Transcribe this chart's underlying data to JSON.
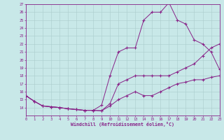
{
  "xlabel": "Windchill (Refroidissement éolien,°C)",
  "bg_color": "#c8e8e8",
  "line_color": "#882288",
  "grid_color": "#aacccc",
  "xmin": 0,
  "xmax": 23,
  "ymin": 13,
  "ymax": 27,
  "line1_x": [
    0,
    1,
    2,
    3,
    4,
    5,
    6,
    7,
    8,
    9,
    10,
    11,
    12,
    13,
    14,
    15,
    16,
    17,
    18,
    19,
    20,
    21,
    22,
    23
  ],
  "line1_y": [
    15.5,
    14.8,
    14.2,
    14.1,
    14.0,
    13.85,
    13.75,
    13.65,
    13.65,
    13.6,
    14.2,
    15.0,
    15.5,
    16.0,
    15.5,
    15.5,
    16.0,
    16.5,
    17.0,
    17.2,
    17.5,
    17.5,
    17.8,
    18.0
  ],
  "line2_x": [
    0,
    1,
    2,
    3,
    4,
    5,
    6,
    7,
    8,
    9,
    10,
    11,
    12,
    13,
    14,
    15,
    16,
    17,
    18,
    19,
    20,
    21,
    22,
    23
  ],
  "line2_y": [
    15.5,
    14.8,
    14.2,
    14.1,
    14.0,
    13.85,
    13.75,
    13.65,
    13.65,
    13.6,
    14.5,
    17.0,
    17.5,
    18.0,
    18.0,
    18.0,
    18.0,
    18.0,
    18.5,
    19.0,
    19.5,
    20.5,
    21.5,
    22.0
  ],
  "line3_x": [
    0,
    1,
    2,
    3,
    4,
    5,
    6,
    7,
    8,
    9,
    10,
    11,
    12,
    13,
    14,
    15,
    16,
    17,
    18,
    19,
    20,
    21,
    22,
    23
  ],
  "line3_y": [
    15.5,
    14.8,
    14.2,
    14.1,
    14.0,
    13.85,
    13.75,
    13.65,
    13.65,
    14.3,
    18.0,
    21.0,
    21.5,
    21.5,
    25.0,
    26.0,
    26.0,
    27.2,
    25.0,
    24.5,
    22.5,
    22.0,
    21.0,
    18.8
  ]
}
